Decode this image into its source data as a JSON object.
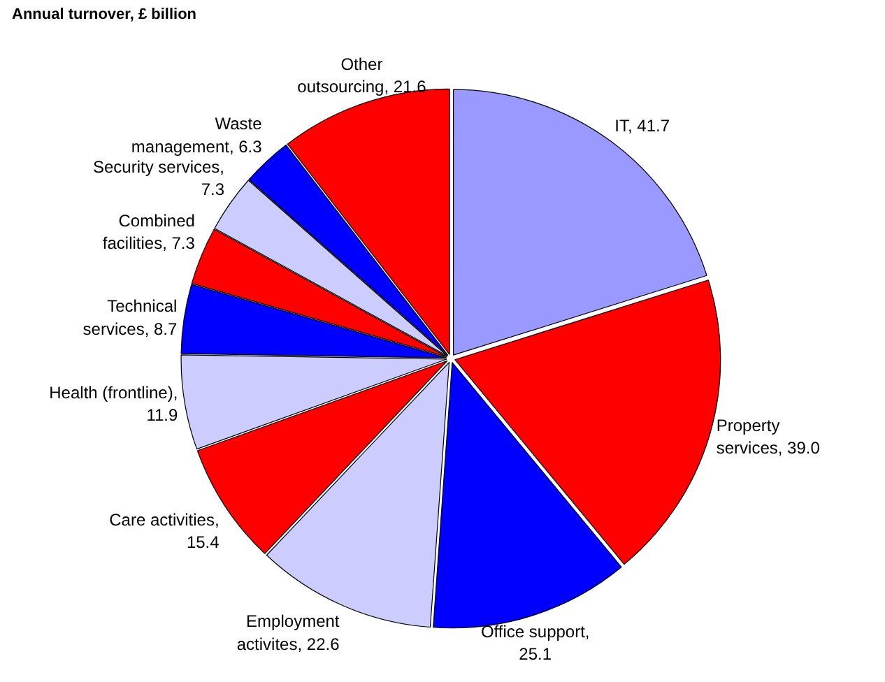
{
  "chart_data": {
    "type": "pie",
    "title": "Annual turnover, £ billion",
    "categories": [
      "IT, 41.7",
      "Property services, 39.0",
      "Office support, 25.1",
      "Employment activites, 22.6",
      "Care activities, 15.4",
      "Health (frontline), 11.9",
      "Technical services, 8.7",
      "Combined facilities, 7.3",
      "Security services, 7.3",
      "Waste management, 6.3",
      "Other outsourcing, 21.6"
    ],
    "values": [
      41.7,
      39.0,
      25.1,
      22.6,
      15.4,
      11.9,
      8.7,
      7.3,
      7.3,
      6.3,
      21.6
    ],
    "colors": [
      "#9999ff",
      "#ff0000",
      "#0000ff",
      "#ccccff",
      "#ff0000",
      "#ccccff",
      "#0000ff",
      "#ff0000",
      "#ccccff",
      "#0000ff",
      "#ff0000"
    ]
  }
}
